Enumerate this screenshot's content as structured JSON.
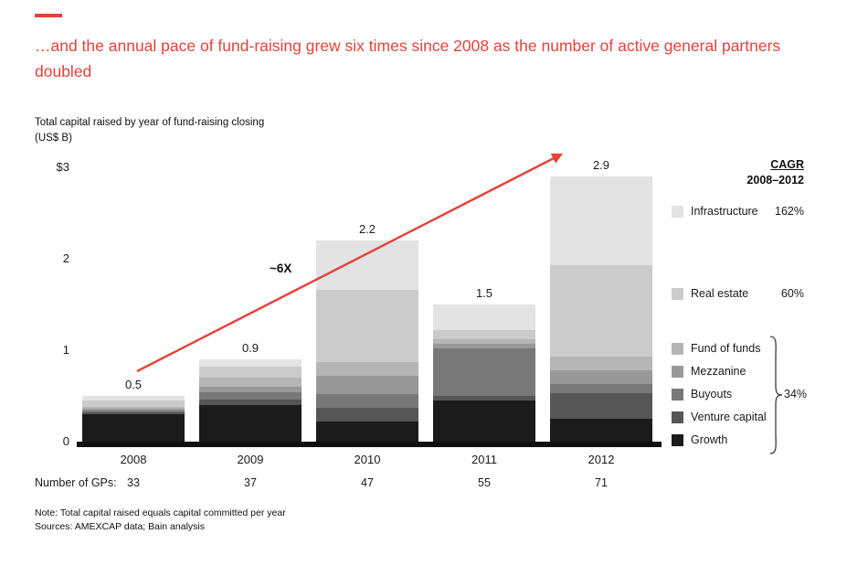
{
  "colors": {
    "accent_red": "#e5423b",
    "axis_black": "#101010"
  },
  "header": {
    "title": "…and the annual pace of fund-raising grew six times since 2008 as the number of active general partners doubled"
  },
  "chart_data": {
    "type": "bar",
    "stacked": true,
    "title": "Total capital raised by year of fund-raising closing",
    "units": "(US$ B)",
    "categories": [
      "2008",
      "2009",
      "2010",
      "2011",
      "2012"
    ],
    "series": [
      {
        "name": "Growth",
        "color": "#1b1b1b",
        "values": [
          0.3,
          0.4,
          0.22,
          0.45,
          0.25
        ]
      },
      {
        "name": "Venture capital",
        "color": "#565656",
        "values": [
          0.02,
          0.06,
          0.15,
          0.05,
          0.28
        ]
      },
      {
        "name": "Buyouts",
        "color": "#787878",
        "values": [
          0.02,
          0.08,
          0.15,
          0.52,
          0.1
        ]
      },
      {
        "name": "Mezzanine",
        "color": "#989898",
        "values": [
          0.02,
          0.06,
          0.2,
          0.05,
          0.15
        ]
      },
      {
        "name": "Fund of funds",
        "color": "#b5b5b5",
        "values": [
          0.02,
          0.1,
          0.15,
          0.05,
          0.15
        ]
      },
      {
        "name": "Real estate",
        "color": "#cbcbcb",
        "values": [
          0.07,
          0.12,
          0.79,
          0.1,
          1.0
        ]
      },
      {
        "name": "Infrastructure",
        "color": "#e3e3e3",
        "values": [
          0.05,
          0.08,
          0.54,
          0.28,
          0.97
        ]
      }
    ],
    "totals": [
      "0.5",
      "0.9",
      "2.2",
      "1.5",
      "2.9"
    ],
    "y_ticks": [
      {
        "label": "$3",
        "value": 3
      },
      {
        "label": "2",
        "value": 2
      },
      {
        "label": "1",
        "value": 1
      },
      {
        "label": "0",
        "value": 0
      }
    ],
    "ylim": [
      0,
      3
    ],
    "grid": false,
    "annotation": "~6X",
    "legend_position": "right"
  },
  "legend": {
    "cagr_label": "CAGR",
    "cagr_period": "2008–2012",
    "items": [
      {
        "label": "Infrastructure",
        "color": "#e3e3e3",
        "cagr": "162%"
      },
      {
        "label": "Real estate",
        "color": "#cbcbcb",
        "cagr": "60%"
      },
      {
        "label": "Fund of funds",
        "color": "#b5b5b5"
      },
      {
        "label": "Mezzanine",
        "color": "#989898"
      },
      {
        "label": "Buyouts",
        "color": "#787878"
      },
      {
        "label": "Venture capital",
        "color": "#565656"
      },
      {
        "label": "Growth",
        "color": "#1b1b1b"
      }
    ],
    "group_cagr": "34%"
  },
  "gp_row": {
    "label": "Number of GPs:",
    "values": [
      "33",
      "37",
      "47",
      "55",
      "71"
    ]
  },
  "footer": {
    "note": "Note: Total capital raised equals capital committed per year",
    "sources": "Sources: AMEXCAP data; Bain analysis"
  }
}
